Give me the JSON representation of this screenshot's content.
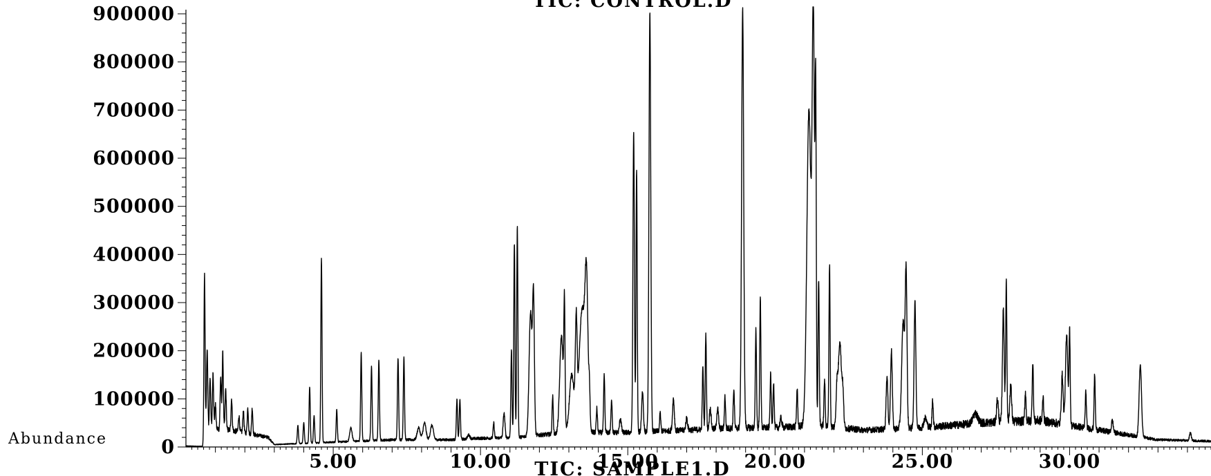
{
  "chart_data": {
    "type": "line",
    "title": "TIC: CONTROL.D",
    "subtitle": "TIC: SAMPLE1.D",
    "ylabel": "Abundance",
    "xlabel": "",
    "xlim": [
      0.0,
      34.8
    ],
    "ylim": [
      0,
      900000
    ],
    "grid": false,
    "x_ticks": [
      5,
      10,
      15,
      20,
      25,
      30
    ],
    "x_tick_labels": [
      "5.00",
      "10.00",
      "15.00",
      "20.00",
      "25.00",
      "30.00"
    ],
    "y_ticks": [
      0,
      100000,
      200000,
      300000,
      400000,
      500000,
      600000,
      700000,
      800000,
      900000
    ],
    "y_tick_labels": [
      "0",
      "100000",
      "200000",
      "300000",
      "400000",
      "500000",
      "600000",
      "700000",
      "800000",
      "900000"
    ],
    "baseline": [
      [
        0.0,
        2000
      ],
      [
        0.6,
        1000
      ],
      [
        0.63,
        40000
      ],
      [
        1.5,
        35000
      ],
      [
        2.8,
        20000
      ],
      [
        3.0,
        5000
      ],
      [
        5.0,
        10000
      ],
      [
        7.0,
        15000
      ],
      [
        9.0,
        15000
      ],
      [
        10.0,
        18000
      ],
      [
        11.3,
        20000
      ],
      [
        12.0,
        25000
      ],
      [
        13.5,
        30000
      ],
      [
        15.0,
        30000
      ],
      [
        17.0,
        35000
      ],
      [
        19.0,
        40000
      ],
      [
        20.0,
        40000
      ],
      [
        21.5,
        45000
      ],
      [
        23.0,
        35000
      ],
      [
        25.0,
        40000
      ],
      [
        26.0,
        45000
      ],
      [
        27.0,
        50000
      ],
      [
        29.0,
        55000
      ],
      [
        30.5,
        40000
      ],
      [
        31.5,
        30000
      ],
      [
        33.0,
        15000
      ],
      [
        34.8,
        12000
      ]
    ],
    "peaks": [
      [
        0.63,
        358000,
        0.02
      ],
      [
        0.72,
        205000,
        0.02
      ],
      [
        0.82,
        145000,
        0.02
      ],
      [
        0.92,
        155000,
        0.02
      ],
      [
        1.0,
        88000,
        0.02
      ],
      [
        1.18,
        145000,
        0.02
      ],
      [
        1.25,
        195000,
        0.02
      ],
      [
        1.35,
        120000,
        0.02
      ],
      [
        1.55,
        100000,
        0.02
      ],
      [
        1.8,
        65000,
        0.02
      ],
      [
        1.95,
        75000,
        0.02
      ],
      [
        2.1,
        80000,
        0.02
      ],
      [
        2.25,
        80000,
        0.02
      ],
      [
        3.8,
        45000,
        0.02
      ],
      [
        4.0,
        50000,
        0.02
      ],
      [
        4.2,
        125000,
        0.02
      ],
      [
        4.35,
        65000,
        0.02
      ],
      [
        4.6,
        393000,
        0.02
      ],
      [
        5.12,
        78000,
        0.02
      ],
      [
        5.6,
        40000,
        0.04
      ],
      [
        5.95,
        195000,
        0.02
      ],
      [
        6.3,
        167000,
        0.02
      ],
      [
        6.55,
        182000,
        0.02
      ],
      [
        7.2,
        187000,
        0.02
      ],
      [
        7.4,
        188000,
        0.02
      ],
      [
        7.9,
        40000,
        0.05
      ],
      [
        8.1,
        50000,
        0.05
      ],
      [
        8.35,
        45000,
        0.05
      ],
      [
        9.2,
        98000,
        0.02
      ],
      [
        9.3,
        98000,
        0.02
      ],
      [
        9.6,
        25000,
        0.04
      ],
      [
        10.45,
        50000,
        0.02
      ],
      [
        10.8,
        70000,
        0.03
      ],
      [
        11.05,
        200000,
        0.02
      ],
      [
        11.15,
        425000,
        0.02
      ],
      [
        11.25,
        457000,
        0.02
      ],
      [
        11.7,
        280000,
        0.05
      ],
      [
        11.8,
        300000,
        0.03
      ],
      [
        12.45,
        105000,
        0.02
      ],
      [
        12.75,
        230000,
        0.06
      ],
      [
        12.85,
        270000,
        0.02
      ],
      [
        13.1,
        150000,
        0.08
      ],
      [
        13.25,
        230000,
        0.03
      ],
      [
        13.45,
        285000,
        0.1
      ],
      [
        13.6,
        300000,
        0.05
      ],
      [
        13.7,
        100000,
        0.02
      ],
      [
        13.95,
        80000,
        0.02
      ],
      [
        14.2,
        150000,
        0.02
      ],
      [
        14.45,
        100000,
        0.02
      ],
      [
        14.75,
        60000,
        0.03
      ],
      [
        15.2,
        655000,
        0.025
      ],
      [
        15.3,
        580000,
        0.02
      ],
      [
        15.5,
        115000,
        0.03
      ],
      [
        15.75,
        905000,
        0.03
      ],
      [
        16.1,
        70000,
        0.02
      ],
      [
        16.55,
        100000,
        0.03
      ],
      [
        17.0,
        60000,
        0.03
      ],
      [
        17.55,
        165000,
        0.02
      ],
      [
        17.65,
        235000,
        0.02
      ],
      [
        17.8,
        80000,
        0.03
      ],
      [
        18.05,
        80000,
        0.03
      ],
      [
        18.3,
        105000,
        0.02
      ],
      [
        18.6,
        120000,
        0.02
      ],
      [
        18.9,
        910000,
        0.035
      ],
      [
        19.35,
        245000,
        0.02
      ],
      [
        19.5,
        310000,
        0.02
      ],
      [
        19.85,
        150000,
        0.02
      ],
      [
        19.95,
        135000,
        0.02
      ],
      [
        20.2,
        60000,
        0.03
      ],
      [
        20.75,
        120000,
        0.02
      ],
      [
        21.15,
        700000,
        0.07
      ],
      [
        21.3,
        870000,
        0.04
      ],
      [
        21.38,
        680000,
        0.02
      ],
      [
        21.48,
        350000,
        0.02
      ],
      [
        21.68,
        140000,
        0.02
      ],
      [
        21.85,
        380000,
        0.02
      ],
      [
        22.1,
        120000,
        0.03
      ],
      [
        22.2,
        220000,
        0.05
      ],
      [
        22.3,
        110000,
        0.03
      ],
      [
        23.8,
        145000,
        0.03
      ],
      [
        23.95,
        200000,
        0.03
      ],
      [
        24.35,
        260000,
        0.05
      ],
      [
        24.45,
        350000,
        0.03
      ],
      [
        24.75,
        300000,
        0.03
      ],
      [
        25.1,
        60000,
        0.05
      ],
      [
        25.35,
        100000,
        0.02
      ],
      [
        26.8,
        70000,
        0.08
      ],
      [
        27.55,
        100000,
        0.03
      ],
      [
        27.75,
        285000,
        0.03
      ],
      [
        27.85,
        345000,
        0.02
      ],
      [
        28.0,
        130000,
        0.03
      ],
      [
        28.5,
        115000,
        0.02
      ],
      [
        28.75,
        180000,
        0.02
      ],
      [
        29.1,
        105000,
        0.02
      ],
      [
        29.75,
        150000,
        0.03
      ],
      [
        29.9,
        230000,
        0.04
      ],
      [
        30.0,
        240000,
        0.02
      ],
      [
        30.55,
        115000,
        0.02
      ],
      [
        30.85,
        150000,
        0.02
      ],
      [
        31.45,
        55000,
        0.03
      ],
      [
        32.4,
        170000,
        0.04
      ],
      [
        34.1,
        30000,
        0.03
      ]
    ]
  }
}
